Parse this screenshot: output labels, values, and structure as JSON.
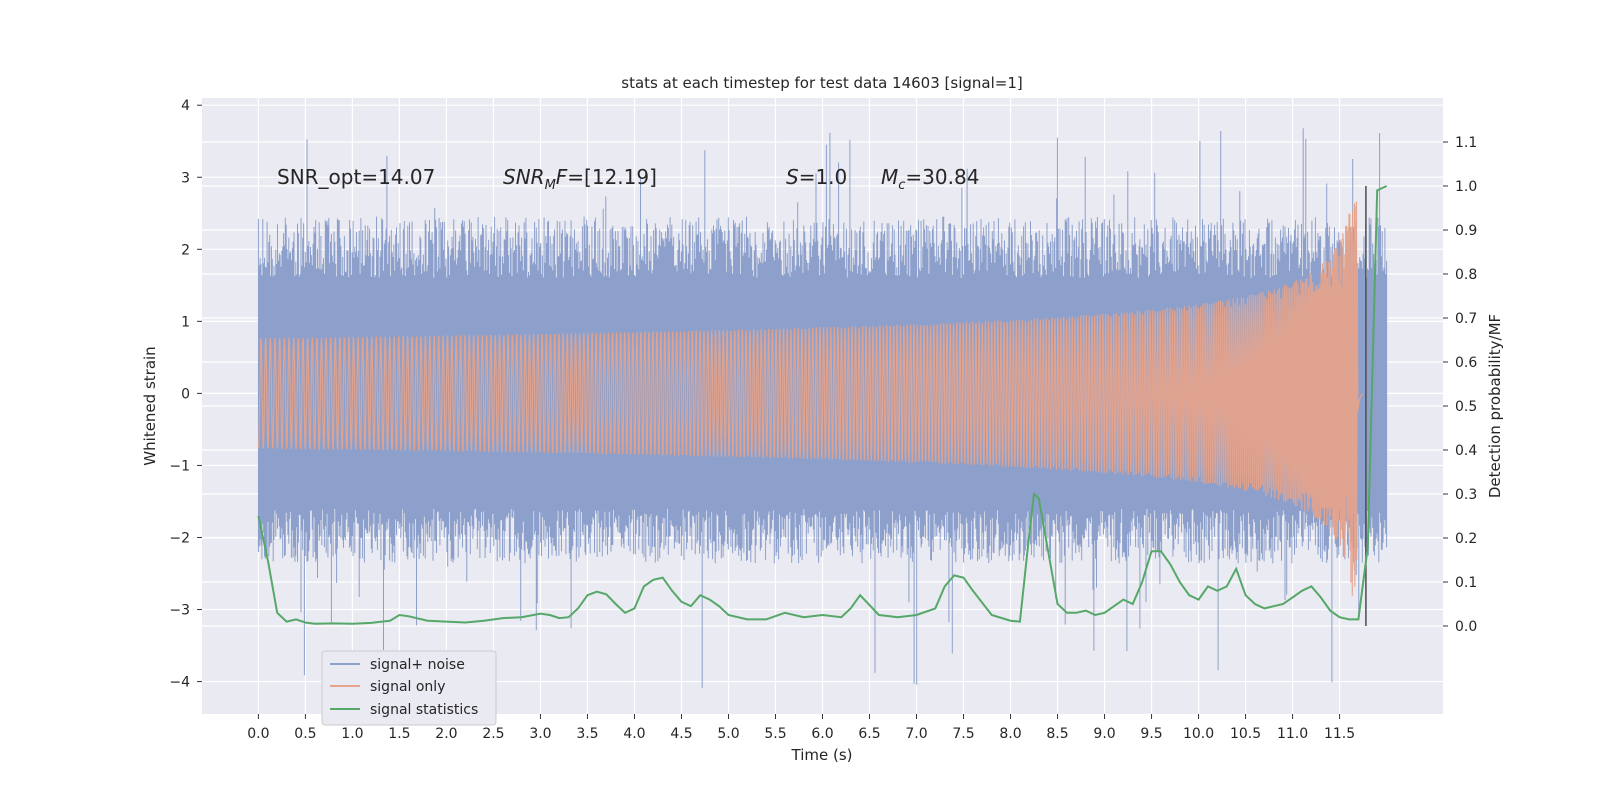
{
  "chart_data": {
    "type": "line",
    "title": "stats at each timestep for test data 14603 [signal=1]",
    "xlabel": "Time (s)",
    "ylabel_left": "Whitened strain",
    "ylabel_right": "Detection probability/MF",
    "xlim": [
      -0.6,
      12.6
    ],
    "ylim_left": [
      -4.45,
      4.1
    ],
    "ylim_right": [
      -0.2,
      1.2
    ],
    "x_ticks": [
      "0.0",
      "0.5",
      "1.0",
      "1.5",
      "2.0",
      "2.5",
      "3.0",
      "3.5",
      "4.0",
      "4.5",
      "5.0",
      "5.5",
      "6.0",
      "6.5",
      "7.0",
      "7.5",
      "8.0",
      "8.5",
      "9.0",
      "9.5",
      "10.0",
      "10.5",
      "11.0",
      "11.5"
    ],
    "y_ticks_left": [
      "−4",
      "−3",
      "−2",
      "−1",
      "0",
      "1",
      "2",
      "3",
      "4"
    ],
    "y_ticks_right": [
      "0.0",
      "0.1",
      "0.2",
      "0.3",
      "0.4",
      "0.5",
      "0.6",
      "0.7",
      "0.8",
      "0.9",
      "1.0",
      "1.1"
    ],
    "grid": true,
    "legend_position": "lower-left",
    "annotations": {
      "snr_opt": "SNR_opt=14.07",
      "snr_mf_main": "SNR",
      "snr_mf_sub": "M",
      "snr_mf_rest": "F",
      "snr_mf_value": "=[12.19]",
      "s_label": "S",
      "s_value": "=1.0",
      "mc_label": "M",
      "mc_sub": "c",
      "mc_value": "=30.84"
    },
    "series": [
      {
        "name": "signal+ noise",
        "color": "#8da0cb",
        "axis": "left",
        "x_range": [
          0.0,
          12.0
        ],
        "core_envelope": [
          -1.6,
          1.6
        ],
        "typical_peaks": [
          -2.4,
          2.5
        ],
        "max_value": 3.7,
        "min_value": -4.1
      },
      {
        "name": "signal only",
        "color": "#e5a38c",
        "axis": "left",
        "type": "chirp",
        "x_range": [
          0.0,
          11.75
        ],
        "peak_time": 11.68,
        "peak_amplitude": 3.0
      },
      {
        "name": "signal statistics",
        "color": "#55a868",
        "axis": "right",
        "x": [
          0.0,
          0.1,
          0.2,
          0.3,
          0.4,
          0.5,
          0.6,
          0.8,
          1.0,
          1.2,
          1.4,
          1.5,
          1.6,
          1.8,
          2.0,
          2.2,
          2.4,
          2.6,
          2.8,
          3.0,
          3.1,
          3.2,
          3.3,
          3.4,
          3.5,
          3.6,
          3.7,
          3.8,
          3.9,
          4.0,
          4.1,
          4.2,
          4.3,
          4.4,
          4.5,
          4.6,
          4.7,
          4.8,
          4.9,
          5.0,
          5.2,
          5.4,
          5.6,
          5.8,
          6.0,
          6.2,
          6.3,
          6.4,
          6.6,
          6.8,
          7.0,
          7.2,
          7.3,
          7.4,
          7.5,
          7.6,
          7.8,
          8.0,
          8.1,
          8.2,
          8.25,
          8.3,
          8.4,
          8.5,
          8.6,
          8.7,
          8.8,
          8.9,
          9.0,
          9.1,
          9.2,
          9.3,
          9.4,
          9.5,
          9.6,
          9.7,
          9.8,
          9.9,
          10.0,
          10.1,
          10.2,
          10.3,
          10.4,
          10.5,
          10.6,
          10.7,
          10.8,
          10.9,
          11.0,
          11.1,
          11.2,
          11.3,
          11.4,
          11.5,
          11.6,
          11.7,
          11.8,
          11.9,
          12.0
        ],
        "y": [
          0.25,
          0.15,
          0.03,
          0.01,
          0.015,
          0.008,
          0.005,
          0.006,
          0.005,
          0.007,
          0.012,
          0.025,
          0.022,
          0.012,
          0.01,
          0.008,
          0.012,
          0.018,
          0.02,
          0.028,
          0.025,
          0.018,
          0.02,
          0.04,
          0.07,
          0.078,
          0.072,
          0.05,
          0.03,
          0.04,
          0.09,
          0.105,
          0.11,
          0.08,
          0.055,
          0.045,
          0.07,
          0.06,
          0.045,
          0.025,
          0.015,
          0.015,
          0.03,
          0.02,
          0.025,
          0.02,
          0.04,
          0.07,
          0.025,
          0.02,
          0.025,
          0.04,
          0.09,
          0.115,
          0.11,
          0.08,
          0.025,
          0.012,
          0.01,
          0.21,
          0.3,
          0.29,
          0.17,
          0.05,
          0.03,
          0.03,
          0.035,
          0.025,
          0.03,
          0.045,
          0.06,
          0.05,
          0.1,
          0.17,
          0.17,
          0.14,
          0.1,
          0.07,
          0.06,
          0.09,
          0.08,
          0.09,
          0.13,
          0.07,
          0.05,
          0.04,
          0.045,
          0.05,
          0.065,
          0.08,
          0.09,
          0.065,
          0.035,
          0.02,
          0.015,
          0.015,
          0.18,
          0.99,
          1.0
        ]
      }
    ]
  }
}
